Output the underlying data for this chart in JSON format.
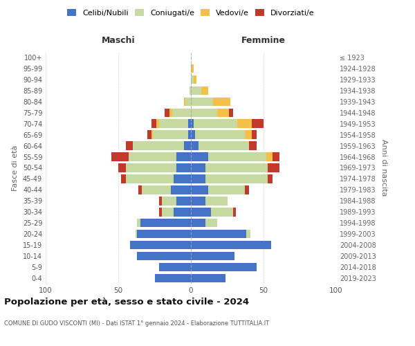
{
  "age_groups": [
    "0-4",
    "5-9",
    "10-14",
    "15-19",
    "20-24",
    "25-29",
    "30-34",
    "35-39",
    "40-44",
    "45-49",
    "50-54",
    "55-59",
    "60-64",
    "65-69",
    "70-74",
    "75-79",
    "80-84",
    "85-89",
    "90-94",
    "95-99",
    "100+"
  ],
  "birth_years": [
    "2019-2023",
    "2014-2018",
    "2009-2013",
    "2004-2008",
    "1999-2003",
    "1994-1998",
    "1989-1993",
    "1984-1988",
    "1979-1983",
    "1974-1978",
    "1969-1973",
    "1964-1968",
    "1959-1963",
    "1954-1958",
    "1949-1953",
    "1944-1948",
    "1939-1943",
    "1934-1938",
    "1929-1933",
    "1924-1928",
    "≤ 1923"
  ],
  "male_celibe": [
    25,
    22,
    37,
    42,
    37,
    35,
    12,
    10,
    14,
    12,
    10,
    10,
    5,
    2,
    2,
    0,
    0,
    0,
    0,
    0,
    0
  ],
  "male_coniugato": [
    0,
    0,
    0,
    0,
    1,
    2,
    8,
    10,
    20,
    33,
    35,
    33,
    35,
    24,
    20,
    13,
    4,
    1,
    0,
    0,
    0
  ],
  "male_vedovo": [
    0,
    0,
    0,
    0,
    0,
    0,
    0,
    0,
    0,
    0,
    0,
    0,
    0,
    1,
    2,
    2,
    1,
    0,
    0,
    0,
    0
  ],
  "male_divorziato": [
    0,
    0,
    0,
    0,
    0,
    0,
    2,
    2,
    2,
    3,
    5,
    12,
    5,
    3,
    3,
    3,
    0,
    0,
    0,
    0,
    0
  ],
  "female_celibe": [
    24,
    45,
    30,
    55,
    38,
    10,
    14,
    10,
    12,
    10,
    10,
    12,
    5,
    3,
    2,
    0,
    0,
    0,
    0,
    0,
    0
  ],
  "female_coniugato": [
    0,
    0,
    0,
    0,
    3,
    8,
    15,
    15,
    25,
    43,
    43,
    40,
    35,
    34,
    30,
    18,
    15,
    7,
    2,
    0,
    0
  ],
  "female_vedovo": [
    0,
    0,
    0,
    0,
    0,
    0,
    0,
    0,
    0,
    0,
    0,
    4,
    0,
    5,
    10,
    8,
    12,
    5,
    2,
    2,
    0
  ],
  "female_divorziato": [
    0,
    0,
    0,
    0,
    0,
    0,
    2,
    0,
    3,
    3,
    8,
    5,
    5,
    3,
    8,
    3,
    0,
    0,
    0,
    0,
    0
  ],
  "colors": {
    "celibe": "#4472c4",
    "coniugato": "#c5d9a0",
    "vedovo": "#f5c04a",
    "divorziato": "#c0392b"
  },
  "title": "Popolazione per età, sesso e stato civile - 2024",
  "subtitle": "COMUNE DI GUDO VISCONTI (MI) - Dati ISTAT 1° gennaio 2024 - Elaborazione TUTTITALIA.IT",
  "xlabel_left": "Maschi",
  "xlabel_right": "Femmine",
  "ylabel_left": "Fasce di età",
  "ylabel_right": "Anni di nascita",
  "xlim": 100,
  "background_color": "#ffffff",
  "grid_color": "#cccccc"
}
